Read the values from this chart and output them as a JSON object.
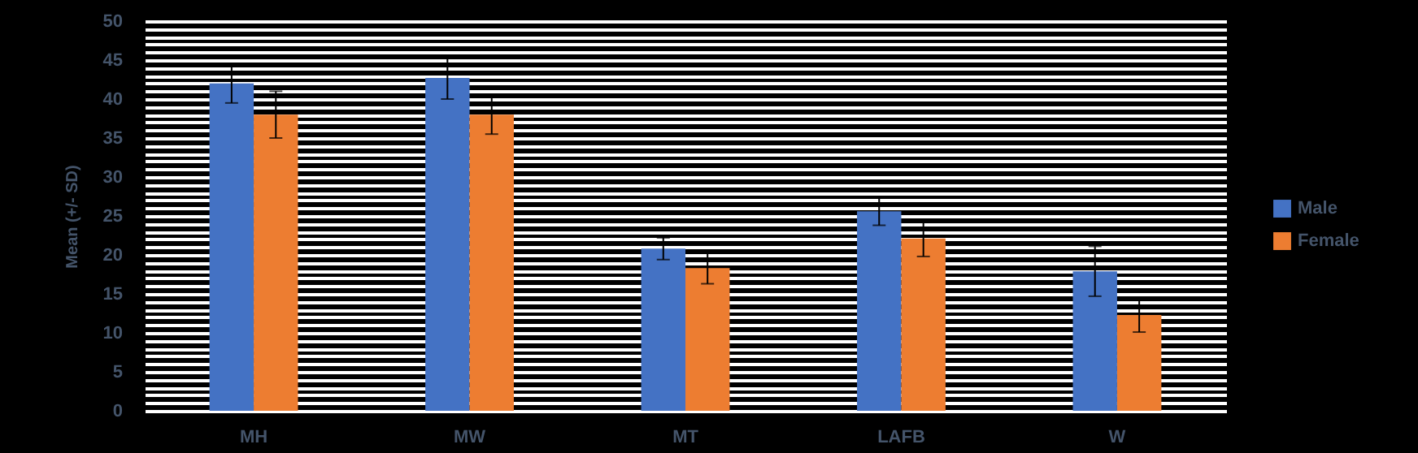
{
  "chart_data": {
    "type": "bar",
    "ylabel": "Mean (+/- SD)",
    "categories": [
      "MH",
      "MW",
      "MT",
      "LAFB",
      "W"
    ],
    "series": [
      {
        "name": "Male",
        "color": "#4472c4",
        "values": [
          42,
          42.7,
          20.8,
          25.6,
          17.9
        ],
        "errors": [
          2.5,
          2.7,
          1.4,
          1.8,
          3.2
        ]
      },
      {
        "name": "Female",
        "color": "#ed7d31",
        "values": [
          38,
          38,
          18.3,
          22.1,
          12.3
        ],
        "errors": [
          3,
          2.5,
          2,
          2.3,
          2.2
        ]
      }
    ],
    "ylim": [
      0,
      50
    ],
    "yticks": [
      0,
      {
        "value": 1,
        "label": null
      },
      {
        "value": 2,
        "label": null
      },
      {
        "value": 3,
        "label": null
      },
      {
        "value": 4,
        "label": null
      },
      5,
      {
        "value": 6,
        "label": null
      },
      {
        "value": 7,
        "label": null
      },
      {
        "value": 8,
        "label": null
      },
      {
        "value": 9,
        "label": null
      },
      10,
      {
        "value": 11,
        "label": null
      },
      {
        "value": 12,
        "label": null
      },
      {
        "value": 13,
        "label": null
      },
      {
        "value": 14,
        "label": null
      },
      15,
      {
        "value": 16,
        "label": null
      },
      {
        "value": 17,
        "label": null
      },
      {
        "value": 18,
        "label": null
      },
      {
        "value": 19,
        "label": null
      },
      20,
      {
        "value": 21,
        "label": null
      },
      {
        "value": 22,
        "label": null
      },
      {
        "value": 23,
        "label": null
      },
      {
        "value": 24,
        "label": null
      },
      25,
      {
        "value": 26,
        "label": null
      },
      {
        "value": 27,
        "label": null
      },
      {
        "value": 28,
        "label": null
      },
      {
        "value": 29,
        "label": null
      },
      30,
      {
        "value": 31,
        "label": null
      },
      {
        "value": 32,
        "label": null
      },
      {
        "value": 33,
        "label": null
      },
      {
        "value": 34,
        "label": null
      },
      35,
      {
        "value": 36,
        "label": null
      },
      {
        "value": 37,
        "label": null
      },
      {
        "value": 38,
        "label": null
      },
      {
        "value": 39,
        "label": null
      },
      40,
      {
        "value": 41,
        "label": null
      },
      {
        "value": 42,
        "label": null
      },
      {
        "value": 43,
        "label": null
      },
      {
        "value": 44,
        "label": null
      },
      45,
      {
        "value": 46,
        "label": null
      },
      {
        "value": 47,
        "label": null
      },
      {
        "value": 48,
        "label": null
      },
      {
        "value": 49,
        "label": null
      },
      50
    ],
    "grid": true,
    "legend": "right"
  }
}
